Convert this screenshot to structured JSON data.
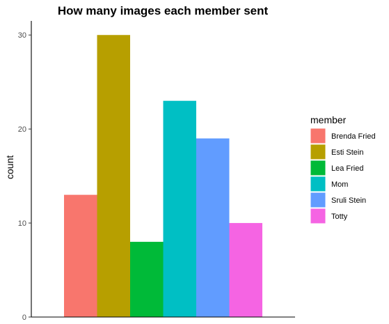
{
  "chart_data": {
    "type": "bar",
    "title": "How many images each member sent",
    "xlabel": "",
    "ylabel": "count",
    "ylim": [
      0,
      31.5
    ],
    "yticks": [
      0,
      10,
      20,
      30
    ],
    "grid": false,
    "legend": {
      "title": "member",
      "placement": "right"
    },
    "series": [
      {
        "name": "Brenda Fried",
        "value": 13,
        "color": "#F8766D"
      },
      {
        "name": "Esti Stein",
        "value": 30,
        "color": "#B79F00"
      },
      {
        "name": "Lea Fried",
        "value": 8,
        "color": "#00BA38"
      },
      {
        "name": "Mom",
        "value": 23,
        "color": "#00BFC4"
      },
      {
        "name": "Sruli Stein",
        "value": 19,
        "color": "#619CFF"
      },
      {
        "name": "Totty",
        "value": 10,
        "color": "#F564E3"
      }
    ]
  }
}
